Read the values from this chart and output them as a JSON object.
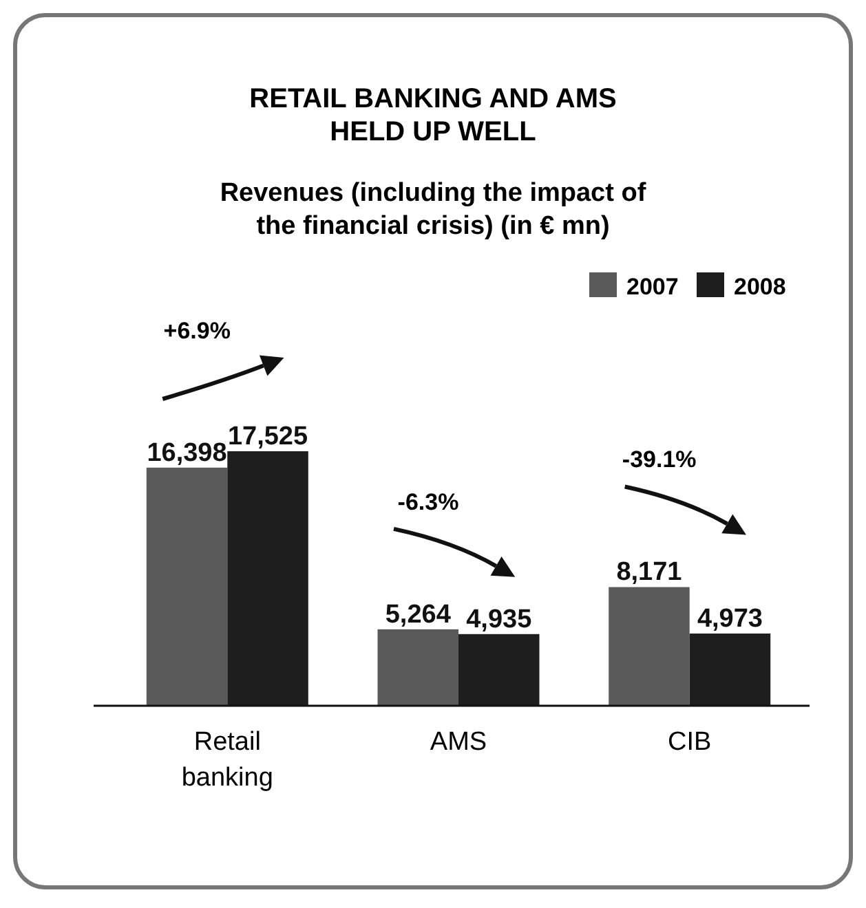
{
  "chart_data": {
    "type": "bar",
    "title": "RETAIL BANKING AND AMS HELD UP WELL",
    "subtitle": "Revenues (including the impact of the financial crisis) (in € mn)",
    "categories": [
      "Retail banking",
      "AMS",
      "CIB"
    ],
    "series": [
      {
        "name": "2007",
        "color": "#5a5a5a",
        "values": [
          16398,
          5264,
          8171
        ],
        "value_labels": [
          "16,398",
          "5,264",
          "8,171"
        ]
      },
      {
        "name": "2008",
        "color": "#1e1e1e",
        "values": [
          17525,
          4935,
          4973
        ],
        "value_labels": [
          "17,525",
          "4,935",
          "4,973"
        ]
      }
    ],
    "legend": "top right",
    "annotations": [
      "+6.9%",
      "-6.3%",
      "-39.1%"
    ]
  }
}
